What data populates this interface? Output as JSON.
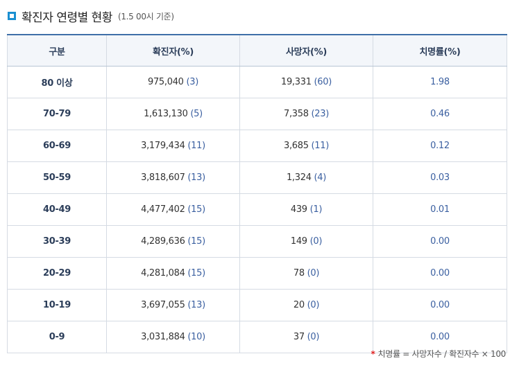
{
  "header": {
    "title": "확진자 연령별 현황",
    "subtitle": "(1.5 00시 기준)",
    "icon": "square-bullet-icon",
    "accent_color": "#1a8fd1"
  },
  "table": {
    "columns": [
      "구분",
      "확진자(%)",
      "사망자(%)",
      "치명률(%)"
    ],
    "rows": [
      {
        "group": "80 이상",
        "confirmed": "975,040",
        "confirmed_pct": "(3)",
        "deaths": "19,331",
        "deaths_pct": "(60)",
        "fatality": "1.98"
      },
      {
        "group": "70-79",
        "confirmed": "1,613,130",
        "confirmed_pct": "(5)",
        "deaths": "7,358",
        "deaths_pct": "(23)",
        "fatality": "0.46"
      },
      {
        "group": "60-69",
        "confirmed": "3,179,434",
        "confirmed_pct": "(11)",
        "deaths": "3,685",
        "deaths_pct": "(11)",
        "fatality": "0.12"
      },
      {
        "group": "50-59",
        "confirmed": "3,818,607",
        "confirmed_pct": "(13)",
        "deaths": "1,324",
        "deaths_pct": "(4)",
        "fatality": "0.03"
      },
      {
        "group": "40-49",
        "confirmed": "4,477,402",
        "confirmed_pct": "(15)",
        "deaths": "439",
        "deaths_pct": "(1)",
        "fatality": "0.01"
      },
      {
        "group": "30-39",
        "confirmed": "4,289,636",
        "confirmed_pct": "(15)",
        "deaths": "149",
        "deaths_pct": "(0)",
        "fatality": "0.00"
      },
      {
        "group": "20-29",
        "confirmed": "4,281,084",
        "confirmed_pct": "(15)",
        "deaths": "78",
        "deaths_pct": "(0)",
        "fatality": "0.00"
      },
      {
        "group": "10-19",
        "confirmed": "3,697,055",
        "confirmed_pct": "(13)",
        "deaths": "20",
        "deaths_pct": "(0)",
        "fatality": "0.00"
      },
      {
        "group": "0-9",
        "confirmed": "3,031,884",
        "confirmed_pct": "(10)",
        "deaths": "37",
        "deaths_pct": "(0)",
        "fatality": "0.00"
      }
    ]
  },
  "footnote": {
    "marker": "*",
    "text": "치명률 = 사망자수 / 확진자수 × 100"
  }
}
